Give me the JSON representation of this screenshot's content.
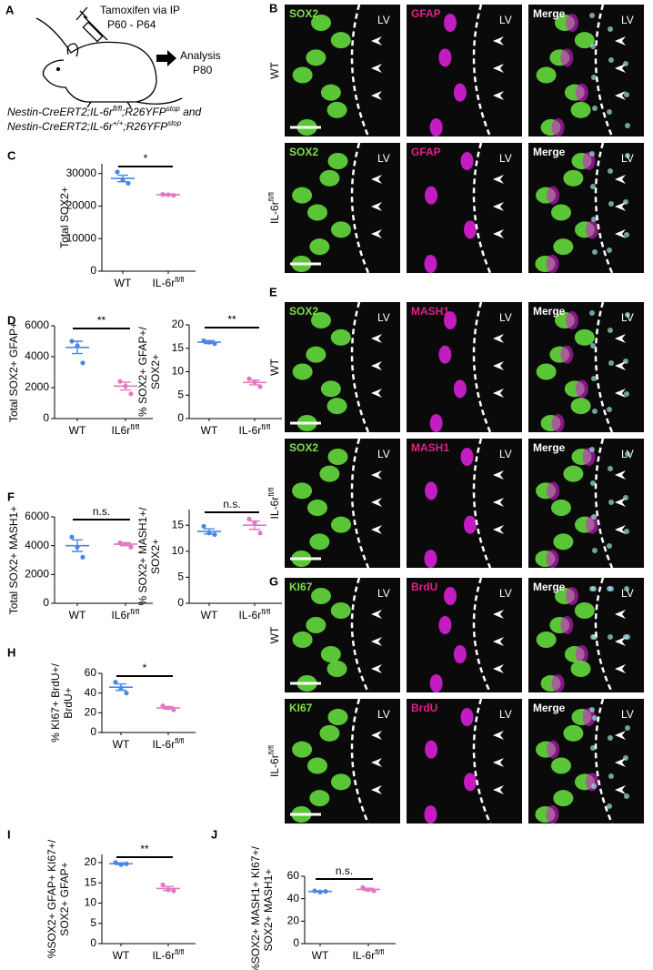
{
  "schematic": {
    "label": "A",
    "treatment": "Tamoxifen via IP",
    "treatment_days": "P60 - P64",
    "analysis": "Analysis",
    "analysis_day": "P80",
    "genotypes": [
      {
        "parts": [
          "Nestin-CreERT2;IL-6r",
          "fl/fl",
          ";R26YFP",
          "stop",
          " and"
        ]
      },
      {
        "parts": [
          "Nestin-CreERT2;IL-6r",
          "+/+",
          ";R26YFP",
          "stop"
        ]
      }
    ]
  },
  "images": [
    {
      "label": "B",
      "channels": [
        "SOX2",
        "GFAP",
        "Merge"
      ],
      "region": "LV",
      "rows": [
        {
          "name": "WT"
        },
        {
          "name": "IL-6r",
          "superscript": "fl/fl"
        }
      ]
    },
    {
      "label": "E",
      "channels": [
        "SOX2",
        "MASH1",
        "Merge"
      ],
      "region": "LV",
      "rows": [
        {
          "name": "WT"
        },
        {
          "name": "IL-6r",
          "superscript": "fl/fl"
        }
      ]
    },
    {
      "label": "G",
      "channels": [
        "KI67",
        "BrdU",
        "Merge"
      ],
      "region": "LV",
      "rows": [
        {
          "name": "WT"
        },
        {
          "name": "IL-6r",
          "superscript": "fl/fl"
        }
      ]
    }
  ],
  "chart_data": [
    {
      "type": "dot",
      "label": "C",
      "ylabel": [
        "Total SOX2+"
      ],
      "ylim": [
        0,
        33000
      ],
      "yticks": [
        0,
        10000,
        20000,
        30000
      ],
      "significance": "*",
      "series": [
        {
          "name": "WT",
          "color": "#4a86e8",
          "values": [
            30500,
            28000,
            27000
          ],
          "mean": 28500,
          "sem": 1000
        },
        {
          "name": "IL-6r",
          "superscript": "fl/fl",
          "color": "#e377c2",
          "values": [
            23600,
            23500,
            23300
          ],
          "mean": 23500,
          "sem": 200
        }
      ]
    },
    {
      "type": "dot",
      "label": "D",
      "ylabel": [
        "Total SOX2+ GFAP+"
      ],
      "ylim": [
        0,
        6000
      ],
      "yticks": [
        0,
        2000,
        4000,
        6000
      ],
      "significance": "**",
      "series": [
        {
          "name": "WT",
          "color": "#4a86e8",
          "values": [
            5000,
            4700,
            3600
          ],
          "mean": 4600,
          "sem": 400
        },
        {
          "name": "IL6r",
          "superscript": "fl/fl",
          "color": "#e377c2",
          "values": [
            2400,
            2100,
            1600
          ],
          "mean": 2100,
          "sem": 250
        }
      ]
    },
    {
      "type": "dot",
      "ylabel": [
        "% SOX2+ GFAP+/",
        "SOX2+"
      ],
      "ylim": [
        0,
        20
      ],
      "yticks": [
        0,
        5,
        10,
        15,
        20
      ],
      "significance": "**",
      "series": [
        {
          "name": "WT",
          "color": "#4a86e8",
          "values": [
            16.6,
            16.3,
            16
          ],
          "mean": 16.3,
          "sem": 0.3
        },
        {
          "name": "IL-6r",
          "superscript": "fl/fl",
          "color": "#e377c2",
          "values": [
            8.5,
            7.8,
            6.8
          ],
          "mean": 7.7,
          "sem": 0.5
        }
      ]
    },
    {
      "type": "dot",
      "label": "F",
      "ylabel": [
        "Total SOX2+ MASH1+"
      ],
      "ylim": [
        0,
        6000
      ],
      "yticks": [
        0,
        2000,
        4000,
        6000
      ],
      "significance": "n.s.",
      "series": [
        {
          "name": "WT",
          "color": "#4a86e8",
          "values": [
            4600,
            3900,
            3200
          ],
          "mean": 4000,
          "sem": 400
        },
        {
          "name": "IL6r",
          "superscript": "fl/fl",
          "color": "#e377c2",
          "values": [
            4200,
            4100,
            3900
          ],
          "mean": 4100,
          "sem": 100
        }
      ]
    },
    {
      "type": "dot",
      "ylabel": [
        "% SOX2+ MASH1+/",
        "SOX2+"
      ],
      "ylim": [
        0,
        18
      ],
      "yticks": [
        0,
        5,
        10,
        15
      ],
      "significance": "n.s.",
      "series": [
        {
          "name": "WT",
          "color": "#4a86e8",
          "values": [
            14.8,
            13.5,
            13.2
          ],
          "mean": 13.8,
          "sem": 0.5
        },
        {
          "name": "IL-6r",
          "superscript": "fl/fl",
          "color": "#e377c2",
          "values": [
            16.2,
            15.5,
            13.5
          ],
          "mean": 15,
          "sem": 0.8
        }
      ]
    },
    {
      "type": "dot",
      "label": "H",
      "ylabel": [
        "% KI67+ BrdU+/",
        "BrdU+"
      ],
      "ylim": [
        0,
        60
      ],
      "yticks": [
        0,
        20,
        40,
        60
      ],
      "significance": "*",
      "series": [
        {
          "name": "WT",
          "color": "#4a86e8",
          "values": [
            51,
            45,
            40
          ],
          "mean": 46,
          "sem": 3.2
        },
        {
          "name": "IL-6r",
          "superscript": "fl/fl",
          "color": "#e377c2",
          "values": [
            27,
            25,
            23
          ],
          "mean": 25,
          "sem": 1.2
        }
      ]
    },
    {
      "type": "dot",
      "label": "I",
      "ylabel": [
        "%SOX2+ GFAP+ KI67+/",
        "SOX2+ GFAP+"
      ],
      "ylim": [
        0,
        22
      ],
      "yticks": [
        0,
        5,
        10,
        15,
        20
      ],
      "significance": "**",
      "series": [
        {
          "name": "WT",
          "color": "#4a86e8",
          "values": [
            20,
            19.5,
            19.7
          ],
          "mean": 19.7,
          "sem": 0.2
        },
        {
          "name": "IL-6r",
          "superscript": "fl/fl",
          "color": "#e377c2",
          "values": [
            14.5,
            13.3,
            13
          ],
          "mean": 13.6,
          "sem": 0.5
        }
      ]
    },
    {
      "type": "dot",
      "label": "J",
      "ylabel": [
        "%SOX2+ MASH1+ KI67+/",
        "SOX2+ MASH1+"
      ],
      "ylim": [
        0,
        60
      ],
      "yticks": [
        0,
        20,
        40,
        60
      ],
      "significance": "n.s.",
      "series": [
        {
          "name": "WT",
          "color": "#4a86e8",
          "values": [
            47,
            46,
            46.5
          ],
          "mean": 46.5,
          "sem": 0.4
        },
        {
          "name": "IL-6r",
          "superscript": "fl/fl",
          "color": "#e377c2",
          "values": [
            50,
            48,
            47
          ],
          "mean": 48.3,
          "sem": 1
        }
      ]
    }
  ]
}
